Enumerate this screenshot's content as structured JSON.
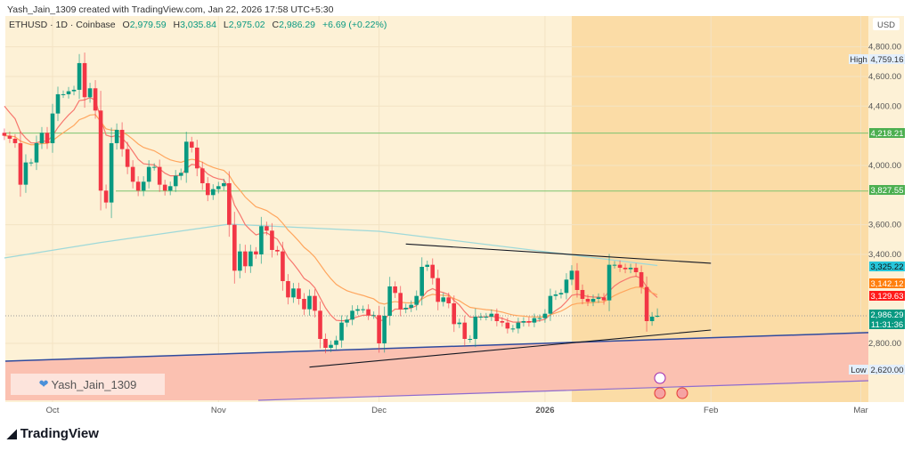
{
  "credit": "Yash_Jain_1309 created with TradingView.com, Jan 22, 2026 17:58 UTC+5:30",
  "legend": {
    "symbol": "ETHUSD · 1D · Coinbase",
    "o_label": "O",
    "o": "2,979.59",
    "h_label": "H",
    "h": "3,035.84",
    "l_label": "L",
    "l": "2,975.02",
    "c_label": "C",
    "c": "2,986.29",
    "change": "+6.69 (+0.22%)"
  },
  "watermark": "Yash_Jain_1309",
  "logo": "TradingView",
  "colors": {
    "up": "#089981",
    "down": "#f23645",
    "ema_fast": "#f7776e",
    "ema_slow": "#ffa65e",
    "ma_long": "#9fd9d9",
    "level_line": "#7cc36f",
    "trend_line": "#131722",
    "support_line": "#2e4a9e",
    "bg": "#fdf1d6",
    "shade": "#fbdca6",
    "zone": "#fbc1b1"
  },
  "chart_data": {
    "type": "candlestick",
    "symbol": "ETHUSD",
    "interval": "1D",
    "currency": "USD",
    "start_date": "2025-09-22",
    "closes": [
      4200,
      4180,
      4150,
      3870,
      4020,
      4020,
      4150,
      4220,
      4150,
      4350,
      4480,
      4480,
      4500,
      4510,
      4690,
      4460,
      4520,
      4370,
      3830,
      3750,
      4150,
      4240,
      4110,
      3990,
      3890,
      3830,
      3890,
      3990,
      3990,
      3870,
      3830,
      3860,
      3930,
      3950,
      4160,
      4120,
      3980,
      3880,
      3800,
      3840,
      3860,
      3880,
      3600,
      3290,
      3420,
      3320,
      3420,
      3400,
      3590,
      3560,
      3430,
      3420,
      3220,
      3110,
      3170,
      3100,
      3030,
      3120,
      3020,
      2830,
      2770,
      2790,
      2820,
      2940,
      2960,
      3020,
      3030,
      3030,
      2990,
      2990,
      2800,
      2986,
      3184,
      3140,
      3030,
      3040,
      3060,
      3120,
      3316,
      3330,
      3240,
      3080,
      3110,
      3070,
      2930,
      2940,
      2830,
      2830,
      2980,
      2980,
      2980,
      3000,
      2950,
      2940,
      2900,
      2900,
      2940,
      2950,
      2940,
      2970,
      2970,
      3000,
      3120,
      3130,
      3140,
      3230,
      3290,
      3160,
      3100,
      3080,
      3100,
      3110,
      3090,
      3330,
      3330,
      3310,
      3300,
      3310,
      3280,
      3180,
      2950,
      2980,
      2986.29
    ],
    "last_candle": {
      "open": 2979.59,
      "high": 3035.84,
      "low": 2975.02,
      "close": 2986.29
    },
    "ma_long": [
      [
        "2025-09-22",
        3376
      ],
      [
        "2025-10-10",
        3480
      ],
      [
        "2025-11-03",
        3604
      ],
      [
        "2025-12-01",
        3556
      ],
      [
        "2026-01-22",
        3325
      ]
    ],
    "y_ticks": [
      "4,800.00",
      "4,600.00",
      "4,400.00",
      "4,000.00",
      "3,600.00",
      "3,400.00",
      "2,800.00"
    ],
    "y_tick_values": [
      4800,
      4600,
      4400,
      4000,
      3600,
      3400,
      2800
    ],
    "ylim": [
      2560,
      4990
    ],
    "x_ticks": [
      "Oct",
      "Nov",
      "Dec",
      "2026",
      "Feb",
      "Mar"
    ],
    "x_tick_dates": [
      "2025-10-01",
      "2025-11-01",
      "2025-12-01",
      "2026-01-01",
      "2026-02-01",
      "2026-03-01"
    ],
    "price_labels": [
      {
        "text": "4,759.16",
        "price": 4759.16,
        "tag": "High",
        "color": "#e3effd",
        "fg": "#333"
      },
      {
        "text": "4,218.21",
        "price": 4218.21,
        "color": "#4caf50",
        "fg": "#fff"
      },
      {
        "text": "3,827.55",
        "price": 3827.55,
        "color": "#4caf50",
        "fg": "#fff"
      },
      {
        "text": "3,325.22",
        "price": 3325.22,
        "color": "#26c6da",
        "fg": "#111"
      },
      {
        "text": "3,142.12",
        "price": 3142.12,
        "color": "#ff7f0e",
        "fg": "#fff"
      },
      {
        "text": "3,129.63",
        "price": 3129.63,
        "color": "#ff1a1a",
        "fg": "#fff"
      },
      {
        "text": "2,986.29",
        "price": 2986.29,
        "sub": "11:31:36",
        "color": "#089981",
        "fg": "#fff"
      },
      {
        "text": "2,620.00",
        "price": 2620,
        "tag": "Low",
        "color": "#e3effd",
        "fg": "#333"
      }
    ],
    "horizontal_levels": [
      4218.21,
      3827.55
    ],
    "trendlines": [
      {
        "from": [
          "2025-12-06",
          3470
        ],
        "to": [
          "2026-02-01",
          3340
        ]
      },
      {
        "from": [
          "2025-11-18",
          2640
        ],
        "to": [
          "2026-02-01",
          2890
        ]
      },
      {
        "from": [
          "2025-09-22",
          2680
        ],
        "to": [
          "2026-02-28",
          2870
        ]
      }
    ],
    "grid": true
  }
}
